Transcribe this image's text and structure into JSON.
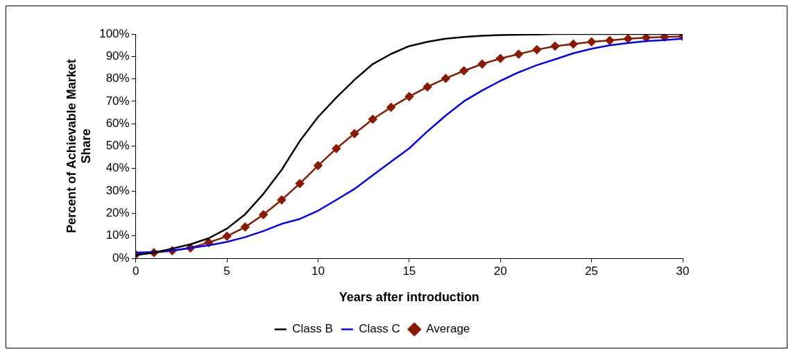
{
  "chart_data": {
    "type": "line",
    "xlabel": "Years after introduction",
    "ylabel": "Percent of Achievable Market Share",
    "x": [
      0,
      1,
      2,
      3,
      4,
      5,
      6,
      7,
      8,
      9,
      10,
      11,
      12,
      13,
      14,
      15,
      16,
      17,
      18,
      19,
      20,
      21,
      22,
      23,
      24,
      25,
      26,
      27,
      28,
      29,
      30
    ],
    "series": [
      {
        "name": "Class B",
        "color": "#000000",
        "marker": "none",
        "values": [
          1.4,
          2.5,
          4.3,
          6.2,
          8.9,
          13.2,
          19.6,
          28.7,
          39.4,
          52.3,
          63,
          71.6,
          79.6,
          86.6,
          91.1,
          94.6,
          96.5,
          97.9,
          98.7,
          99.2,
          99.5,
          99.7,
          99.8,
          100,
          100,
          100,
          100,
          100,
          100,
          100,
          100
        ]
      },
      {
        "name": "Class C",
        "color": "#0000ff",
        "marker": "none",
        "values": [
          2.5,
          2.8,
          3.5,
          4.6,
          5.7,
          7.3,
          9.4,
          12.1,
          15.3,
          17.5,
          21.2,
          26,
          30.9,
          37,
          43,
          49,
          56.6,
          63.6,
          70,
          74.8,
          79.1,
          82.9,
          86.1,
          88.7,
          91.4,
          93.4,
          95,
          96,
          96.8,
          97.3,
          97.9
        ]
      },
      {
        "name": "Average",
        "color": "#8b1a00",
        "marker": "diamond",
        "values": [
          1.6,
          2.5,
          3.3,
          4.6,
          7,
          9.8,
          13.9,
          19.4,
          26,
          33.3,
          41.3,
          48.9,
          55.6,
          62,
          67.3,
          72.1,
          76.4,
          80.2,
          83.6,
          86.6,
          89.1,
          91,
          93,
          94.6,
          95.5,
          96.5,
          97.1,
          97.9,
          98.4,
          98.7,
          98.9
        ]
      }
    ],
    "xlim": [
      0,
      30
    ],
    "xticks": [
      0,
      5,
      10,
      15,
      20,
      25,
      30
    ],
    "ylim": [
      0,
      100
    ],
    "yticks": [
      {
        "value": 0,
        "label": "0%"
      },
      {
        "value": 10,
        "label": "10%"
      },
      {
        "value": 20,
        "label": "20%"
      },
      {
        "value": 30,
        "label": "30%"
      },
      {
        "value": 40,
        "label": "40%"
      },
      {
        "value": 50,
        "label": "50%"
      },
      {
        "value": 60,
        "label": "60%"
      },
      {
        "value": 70,
        "label": "70%"
      },
      {
        "value": 80,
        "label": "80%"
      },
      {
        "value": 90,
        "label": "90%"
      },
      {
        "value": 100,
        "label": "100%"
      }
    ],
    "grid": false,
    "legend": "bottom",
    "line_style": "solid"
  }
}
